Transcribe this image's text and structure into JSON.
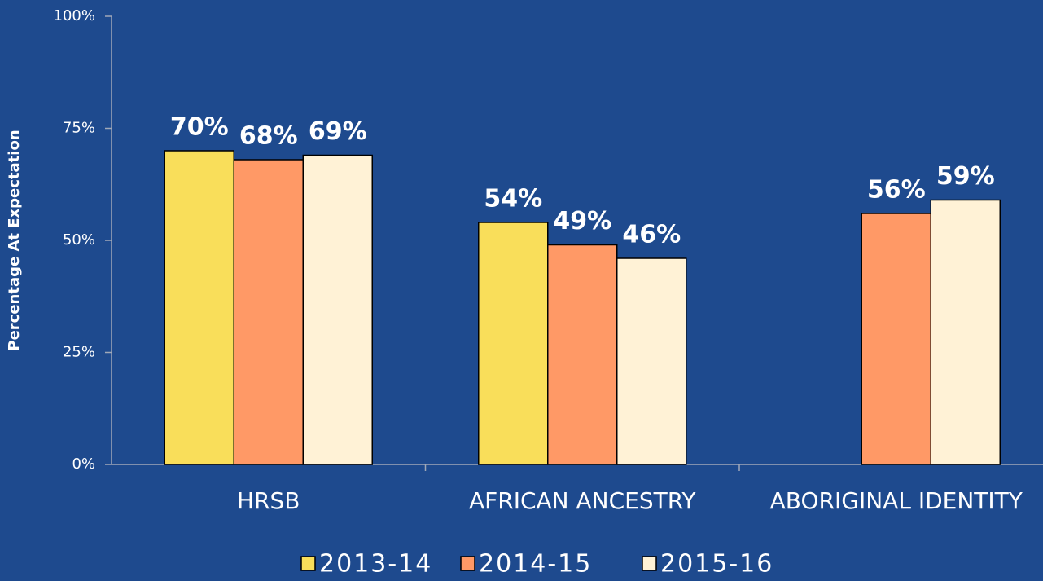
{
  "chart_data": {
    "type": "bar",
    "y_label": "Percentage At Expectation",
    "categories": [
      "HRSB",
      "AFRICAN ANCESTRY",
      "ABORIGINAL IDENTITY"
    ],
    "series": [
      {
        "name": "2013-14",
        "color": "#f9de5a",
        "values": [
          70,
          54,
          null
        ],
        "value_labels": [
          "70%",
          "54%",
          null
        ]
      },
      {
        "name": "2014-15",
        "color": "#ff9966",
        "values": [
          68,
          49,
          56
        ],
        "value_labels": [
          "68%",
          "49%",
          "56%"
        ]
      },
      {
        "name": "2015-16",
        "color": "#fff2d6",
        "values": [
          69,
          46,
          59
        ],
        "value_labels": [
          "69%",
          "46%",
          "59%"
        ]
      }
    ],
    "ylim": [
      0,
      100
    ],
    "yticks": [
      {
        "value": 0,
        "label": "0%"
      },
      {
        "value": 25,
        "label": "25%"
      },
      {
        "value": 50,
        "label": "50%"
      },
      {
        "value": 75,
        "label": "75%"
      },
      {
        "value": 100,
        "label": "100%"
      }
    ]
  }
}
